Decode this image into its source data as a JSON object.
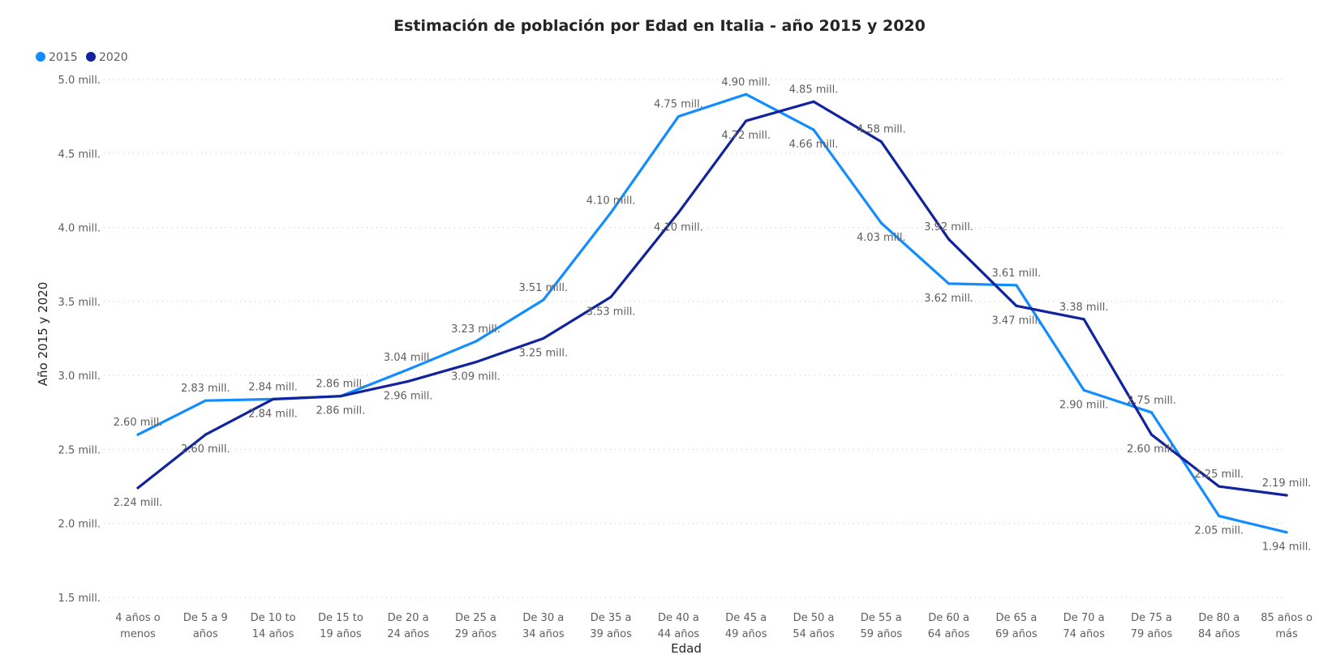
{
  "chart_data": {
    "type": "line",
    "title": "Estimación de población por Edad en Italia - año 2015 y 2020",
    "xlabel": "Edad",
    "ylabel": "Año 2015 y 2020",
    "ylim": [
      1.5,
      5.0
    ],
    "y_ticks": [
      "1.5 mill.",
      "2.0 mill.",
      "2.5 mill.",
      "3.0 mill.",
      "3.5 mill.",
      "4.0 mill.",
      "4.5 mill.",
      "5.0 mill."
    ],
    "y_tick_values": [
      1.5,
      2.0,
      2.5,
      3.0,
      3.5,
      4.0,
      4.5,
      5.0
    ],
    "grid": true,
    "legend_position": "top-left",
    "categories": [
      [
        "4 años o",
        "menos"
      ],
      [
        "De 5 a 9",
        "años"
      ],
      [
        "De 10 to",
        "14 años"
      ],
      [
        "De 15 to",
        "19 años"
      ],
      [
        "De 20 a",
        "24 años"
      ],
      [
        "De 25 a",
        "29 años"
      ],
      [
        "De 30 a",
        "34 años"
      ],
      [
        "De 35 a",
        "39 años"
      ],
      [
        "De 40 a",
        "44 años"
      ],
      [
        "De 45 a",
        "49 años"
      ],
      [
        "De 50 a",
        "54 años"
      ],
      [
        "De 55 a",
        "59 años"
      ],
      [
        "De 60 a",
        "64 años"
      ],
      [
        "De 65 a",
        "69 años"
      ],
      [
        "De 70 a",
        "74 años"
      ],
      [
        "De 75 a",
        "79 años"
      ],
      [
        "De 80 a",
        "84 años"
      ],
      [
        "85 años o",
        "más"
      ]
    ],
    "series": [
      {
        "name": "2015",
        "color": "#118dff",
        "values": [
          2.6,
          2.83,
          2.84,
          2.86,
          3.04,
          3.23,
          3.51,
          4.1,
          4.75,
          4.9,
          4.66,
          4.03,
          3.62,
          3.61,
          2.9,
          2.75,
          2.05,
          1.94
        ],
        "labels": [
          "2.60 mill.",
          "2.83 mill.",
          "2.84 mill.",
          "2.86 mill.",
          "3.04 mill.",
          "3.23 mill.",
          "3.51 mill.",
          "4.10 mill.",
          "4.75 mill.",
          "4.90 mill.",
          "4.66 mill.",
          "4.03 mill.",
          "3.62 mill.",
          "3.61 mill.",
          "2.90 mill.",
          "2.75 mill.",
          "2.05 mill.",
          "1.94 mill."
        ]
      },
      {
        "name": "2020",
        "color": "#12239e",
        "values": [
          2.24,
          2.6,
          2.84,
          2.86,
          2.96,
          3.09,
          3.25,
          3.53,
          4.1,
          4.72,
          4.85,
          4.58,
          3.92,
          3.47,
          3.38,
          2.6,
          2.25,
          2.19
        ],
        "labels": [
          "2.24 mill.",
          "2.60 mill.",
          "2.84 mill.",
          "2.86 mill.",
          "2.96 mill.",
          "3.09 mill.",
          "3.25 mill.",
          "3.53 mill.",
          "4.10 mill.",
          "4.72 mill.",
          "4.85 mill.",
          "4.58 mill.",
          "3.92 mill.",
          "3.47 mill.",
          "3.38 mill.",
          "2.60 mill.",
          "2.25 mill.",
          "2.19 mill."
        ]
      }
    ]
  }
}
